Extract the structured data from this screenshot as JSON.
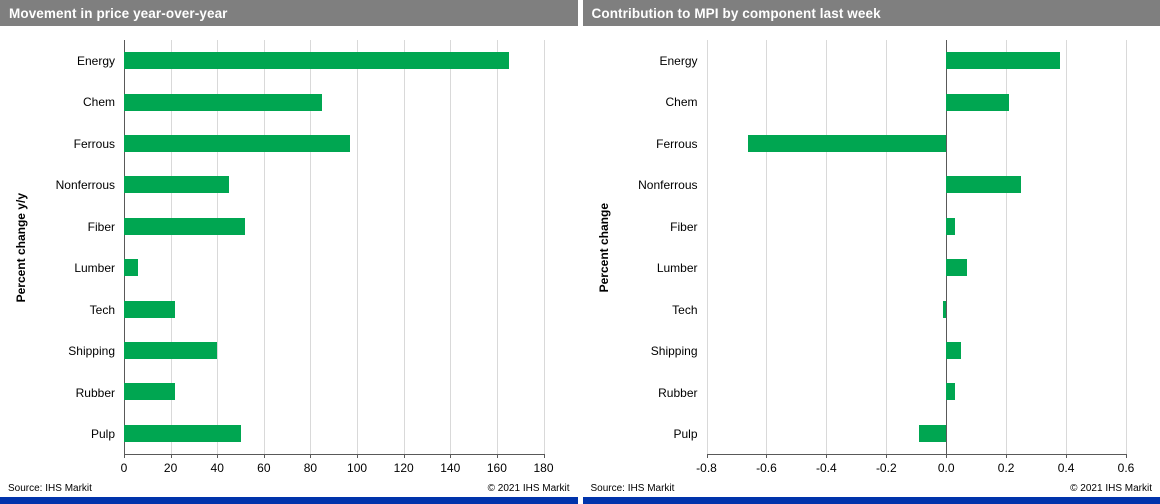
{
  "colors": {
    "header_bg": "#7f7f7f",
    "header_text": "#ffffff",
    "bar_green": "#00A651",
    "grid_line": "#d9d9d9",
    "axis_line": "#595959",
    "brand_strip_blue": "#0033AB"
  },
  "chart_data": [
    {
      "type": "bar",
      "orientation": "horizontal",
      "title": "Movement in price year-over-year",
      "ylabel": "Percent change y/y",
      "categories": [
        "Energy",
        "Chem",
        "Ferrous",
        "Nonferrous",
        "Fiber",
        "Lumber",
        "Tech",
        "Shipping",
        "Rubber",
        "Pulp"
      ],
      "values": [
        165,
        85,
        97,
        45,
        52,
        6,
        22,
        40,
        22,
        50
      ],
      "xlim": [
        0,
        180
      ],
      "xticks": [
        0,
        20,
        40,
        60,
        80,
        100,
        120,
        140,
        160,
        180
      ],
      "tick_decimals": 0,
      "grid": true,
      "legend": "none",
      "source": "Source: IHS Markit",
      "copyright": "© 2021  IHS Markit"
    },
    {
      "type": "bar",
      "orientation": "horizontal",
      "title": "Contribution to MPI by component last week",
      "ylabel": "Percent change",
      "categories": [
        "Energy",
        "Chem",
        "Ferrous",
        "Nonferrous",
        "Fiber",
        "Lumber",
        "Tech",
        "Shipping",
        "Rubber",
        "Pulp"
      ],
      "values": [
        0.38,
        0.21,
        -0.66,
        0.25,
        0.03,
        0.07,
        -0.01,
        0.05,
        0.03,
        -0.09
      ],
      "xlim": [
        -0.8,
        0.6
      ],
      "xticks": [
        -0.8,
        -0.6,
        -0.4,
        -0.2,
        0,
        0.2,
        0.4,
        0.6
      ],
      "tick_decimals": 1,
      "grid": true,
      "legend": "none",
      "source": "Source: IHS Markit",
      "copyright": "© 2021  IHS Markit"
    }
  ]
}
